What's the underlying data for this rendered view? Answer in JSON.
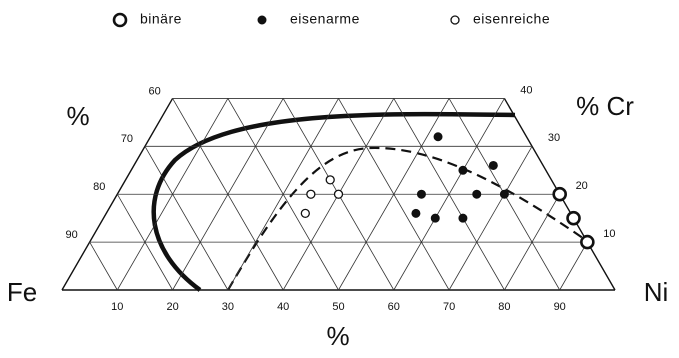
{
  "chart_data": {
    "type": "ternary",
    "left_label": "%",
    "right_label": "% Cr",
    "bottom_label": "%",
    "left_corner": "Fe",
    "right_corner": "Ni",
    "xlim": [
      0,
      100
    ],
    "ylim": [
      0,
      40
    ],
    "xticks": [
      10,
      20,
      30,
      40,
      50,
      60,
      70,
      80,
      90
    ],
    "yticks": [
      10,
      20,
      30,
      40
    ],
    "fe_ticks": [
      60,
      70,
      80,
      90
    ],
    "series": [
      {
        "name": "binäre",
        "marker": "open-large",
        "x": [
          80,
          85,
          90
        ],
        "values": [
          20,
          15,
          10
        ]
      },
      {
        "name": "eisenarme",
        "marker": "filled",
        "x": [
          52,
          60,
          65,
          55,
          65,
          70,
          56,
          60,
          65
        ],
        "values": [
          32,
          25,
          26,
          20,
          20,
          20,
          16,
          15,
          15
        ]
      },
      {
        "name": "eisenreiche",
        "marker": "open-small",
        "x": [
          37,
          35,
          40,
          36
        ],
        "values": [
          23,
          20,
          20,
          16
        ]
      }
    ]
  }
}
